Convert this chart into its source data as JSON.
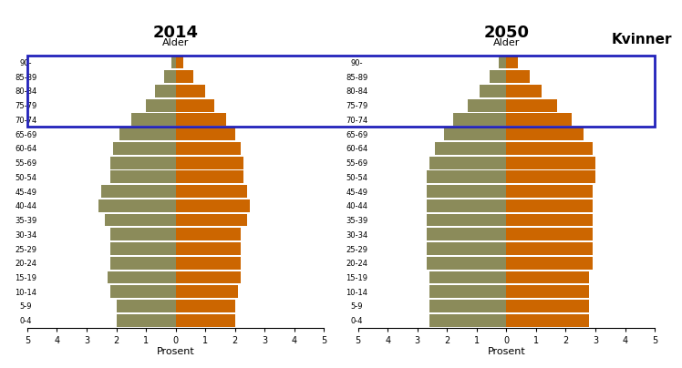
{
  "age_groups": [
    "0-4",
    "5-9",
    "10-14",
    "15-19",
    "20-24",
    "25-29",
    "30-34",
    "35-39",
    "40-44",
    "45-49",
    "50-54",
    "55-69",
    "60-64",
    "65-69",
    "70-74",
    "75-79",
    "80-84",
    "85-89",
    "90-"
  ],
  "year2014_men": [
    2.0,
    2.0,
    2.2,
    2.3,
    2.2,
    2.2,
    2.2,
    2.4,
    2.6,
    2.5,
    2.2,
    2.2,
    2.1,
    1.9,
    1.5,
    1.0,
    0.7,
    0.4,
    0.15
  ],
  "year2014_women": [
    2.0,
    2.0,
    2.1,
    2.2,
    2.2,
    2.2,
    2.2,
    2.4,
    2.5,
    2.4,
    2.3,
    2.3,
    2.2,
    2.0,
    1.7,
    1.3,
    1.0,
    0.6,
    0.25
  ],
  "year2050_men": [
    2.6,
    2.6,
    2.6,
    2.6,
    2.7,
    2.7,
    2.7,
    2.7,
    2.7,
    2.7,
    2.7,
    2.6,
    2.4,
    2.1,
    1.8,
    1.3,
    0.9,
    0.55,
    0.25
  ],
  "year2050_women": [
    2.8,
    2.8,
    2.8,
    2.8,
    2.9,
    2.9,
    2.9,
    2.9,
    2.9,
    2.9,
    3.0,
    3.0,
    2.9,
    2.6,
    2.2,
    1.7,
    1.2,
    0.8,
    0.4
  ],
  "color_men": "#8B8B5A",
  "color_women": "#CC6600",
  "title_2014": "2014",
  "title_2050": "2050",
  "xlabel": "Prosent",
  "ylabel": "Alder",
  "xlim": 5,
  "kvinner_label": "Kvinner",
  "box_color": "#2222BB",
  "highlight_min_idx": 14,
  "highlight_max_idx": 18
}
